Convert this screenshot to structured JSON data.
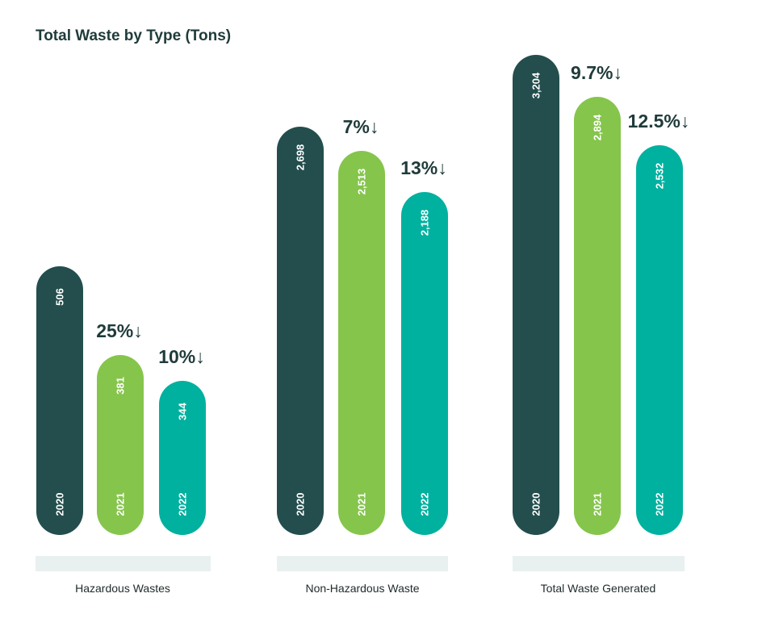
{
  "chart_data": {
    "type": "bar",
    "title": "Total Waste by Type (Tons)",
    "colors": [
      "#234e4d",
      "#85c54c",
      "#00b19f"
    ],
    "groups": [
      {
        "category": "Hazardous Wastes",
        "bars": [
          {
            "year": "2020",
            "value": 506,
            "label": "506"
          },
          {
            "year": "2021",
            "value": 381,
            "label": "381",
            "change": "25%↓"
          },
          {
            "year": "2022",
            "value": 344,
            "label": "344",
            "change": "10%↓"
          }
        ]
      },
      {
        "category": "Non-Hazardous Waste",
        "bars": [
          {
            "year": "2020",
            "value": 2698,
            "label": "2,698"
          },
          {
            "year": "2021",
            "value": 2513,
            "label": "2,513",
            "change": "7%↓"
          },
          {
            "year": "2022",
            "value": 2188,
            "label": "2,188",
            "change": "13%↓"
          }
        ]
      },
      {
        "category": "Total Waste Generated",
        "bars": [
          {
            "year": "2020",
            "value": 3204,
            "label": "3,204"
          },
          {
            "year": "2021",
            "value": 2894,
            "label": "2,894",
            "change": "9.7%↓"
          },
          {
            "year": "2022",
            "value": 2532,
            "label": "2,532",
            "change": "12.5%↓"
          }
        ]
      }
    ]
  }
}
